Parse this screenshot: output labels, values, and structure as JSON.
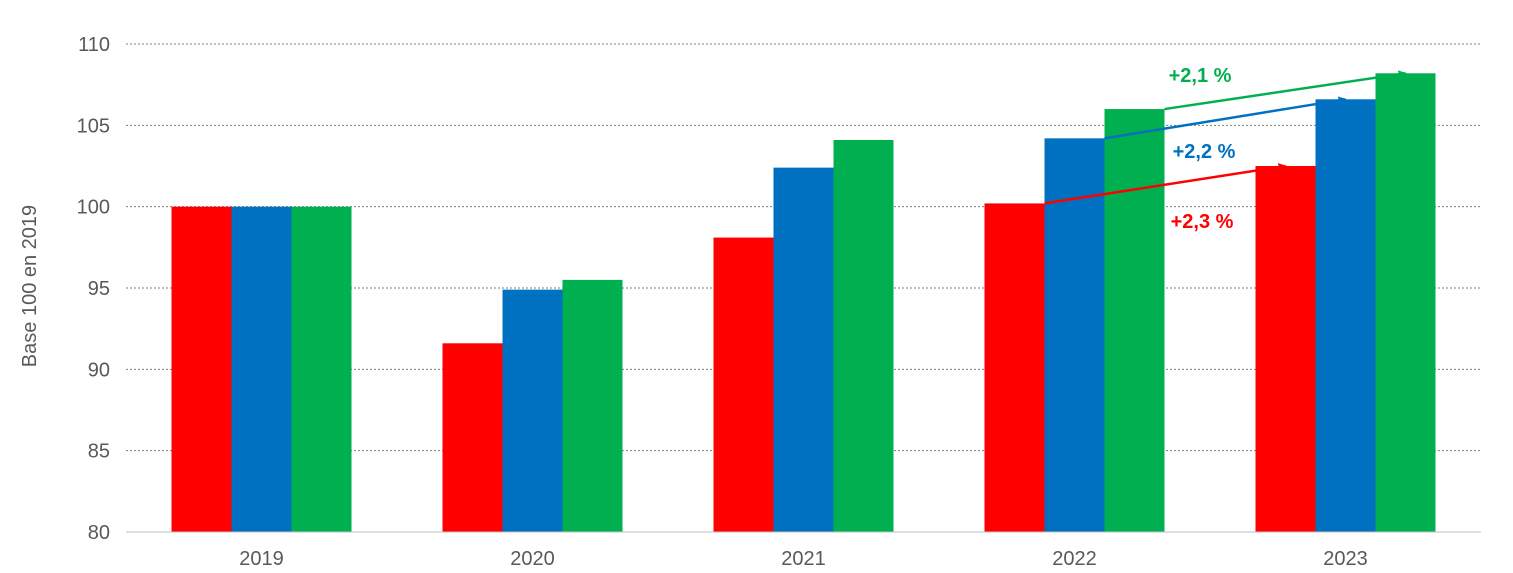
{
  "chart_data": {
    "type": "bar",
    "title": "",
    "xlabel": "",
    "ylabel": "Base 100 en 2019",
    "ylim": [
      80,
      110
    ],
    "yticks": [
      80,
      85,
      90,
      95,
      100,
      105,
      110
    ],
    "grid": true,
    "legend": "none",
    "categories": [
      "2019",
      "2020",
      "2021",
      "2022",
      "2023"
    ],
    "series": [
      {
        "color": "#ff0000",
        "values": [
          100,
          91.6,
          98.1,
          100.2,
          102.5
        ]
      },
      {
        "color": "#0070c0",
        "values": [
          100,
          94.9,
          102.4,
          104.2,
          106.6
        ]
      },
      {
        "color": "#00b050",
        "values": [
          100,
          95.5,
          104.1,
          106.0,
          108.2
        ]
      }
    ],
    "annotations": [
      {
        "text": "+2,1 %",
        "color": "#00b050",
        "series": 2,
        "from_category": "2022",
        "to_category": "2023"
      },
      {
        "text": "+2,2 %",
        "color": "#0070c0",
        "series": 1,
        "from_category": "2022",
        "to_category": "2023"
      },
      {
        "text": "+2,3 %",
        "color": "#ff0000",
        "series": 0,
        "from_category": "2022",
        "to_category": "2023"
      }
    ]
  }
}
